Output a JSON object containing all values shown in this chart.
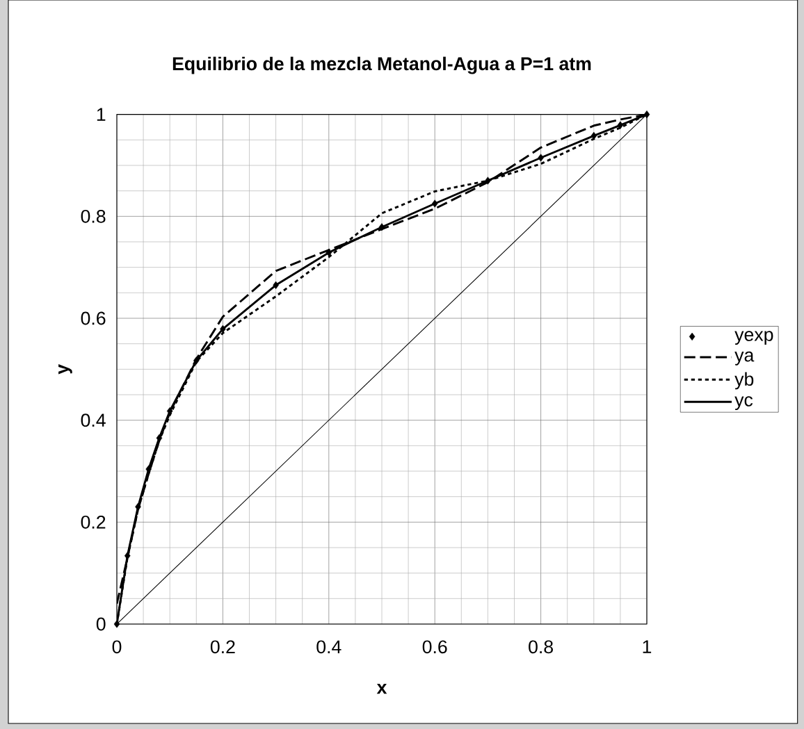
{
  "chart_data": {
    "type": "line",
    "title": "Equilibrio de la mezcla Metanol-Agua a P=1 atm",
    "xlabel": "x",
    "ylabel": "y",
    "xlim": [
      0,
      1
    ],
    "ylim": [
      0,
      1
    ],
    "xticks": [
      0,
      0.2,
      0.4,
      0.6,
      0.8,
      1
    ],
    "yticks": [
      0,
      0.2,
      0.4,
      0.6,
      0.8,
      1
    ],
    "grid": true,
    "legend": "right",
    "x": [
      0,
      0.02,
      0.04,
      0.06,
      0.08,
      0.1,
      0.15,
      0.2,
      0.3,
      0.4,
      0.5,
      0.6,
      0.7,
      0.8,
      0.9,
      0.95,
      1
    ],
    "series": [
      {
        "name": "yexp",
        "type": "scatter",
        "marker": "diamond",
        "color": "#000000",
        "values": [
          0,
          0.134,
          0.23,
          0.304,
          0.365,
          0.418,
          0.517,
          0.579,
          0.665,
          0.729,
          0.779,
          0.825,
          0.87,
          0.915,
          0.958,
          0.979,
          1
        ]
      },
      {
        "name": "ya",
        "line_style": "dashed",
        "color": "#000000",
        "values": [
          0.04,
          0.13,
          0.225,
          0.295,
          0.36,
          0.415,
          0.52,
          0.603,
          0.693,
          0.734,
          0.775,
          0.815,
          0.867,
          0.935,
          0.978,
          0.99,
          1
        ]
      },
      {
        "name": "yb",
        "line_style": "dotted",
        "color": "#000000",
        "values": [
          0,
          0.13,
          0.225,
          0.295,
          0.36,
          0.41,
          0.515,
          0.571,
          0.643,
          0.72,
          0.806,
          0.849,
          0.87,
          0.903,
          0.952,
          0.974,
          1
        ]
      },
      {
        "name": "yc",
        "line_style": "solid",
        "color": "#000000",
        "values": [
          0,
          0.134,
          0.23,
          0.304,
          0.365,
          0.418,
          0.517,
          0.579,
          0.665,
          0.729,
          0.779,
          0.825,
          0.87,
          0.915,
          0.958,
          0.979,
          1
        ]
      },
      {
        "line_style": "solid",
        "color": "#000000",
        "x": [
          0,
          1
        ],
        "values": [
          0,
          1
        ]
      }
    ]
  }
}
